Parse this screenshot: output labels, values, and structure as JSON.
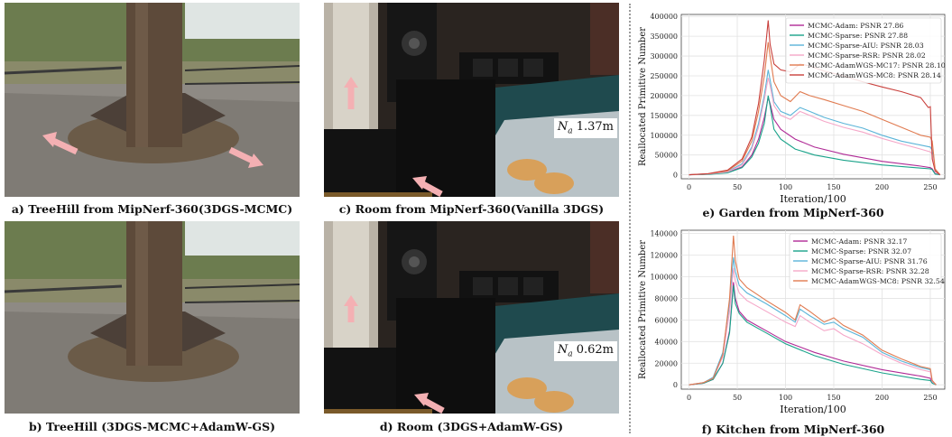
{
  "photos": {
    "a": {
      "caption": "a) TreeHill from MipNerf-360(3DGS-MCMC)"
    },
    "b": {
      "caption": "b) TreeHill (3DGS-MCMC+AdamW-GS)"
    },
    "c": {
      "caption": "c) Room from MipNerf-360(Vanilla 3DGS)",
      "na_symbol": "N",
      "na_sub": "a",
      "na_value": "1.37m"
    },
    "d": {
      "caption": "d) Room (3DGS+AdamW-GS)",
      "na_symbol": "N",
      "na_sub": "a",
      "na_value": "0.62m"
    }
  },
  "colors": {
    "arrow": "#f4b0b3",
    "adam": "#b02a96",
    "sparse": "#1aa38a",
    "aiu": "#5ab4d8",
    "rsr": "#f5a7c8",
    "mc17": "#e07a4f",
    "mc8": "#c9403c"
  },
  "chart_data": [
    {
      "type": "line",
      "caption": "e) Garden from MipNerf-360",
      "xlabel": "Iteration/100",
      "ylabel": "Reallocated Primitive Number",
      "xlim": [
        -8,
        265
      ],
      "ylim": [
        -10000,
        405000
      ],
      "xticks": [
        0,
        50,
        100,
        150,
        200,
        250
      ],
      "yticks": [
        0,
        50000,
        100000,
        150000,
        200000,
        250000,
        300000,
        350000,
        400000
      ],
      "legend_position": "top-right",
      "series": [
        {
          "name": "MCMC-Adam: PSNR 27.86",
          "color_key": "adam",
          "x": [
            0,
            20,
            40,
            55,
            65,
            72,
            78,
            82,
            84,
            88,
            95,
            110,
            130,
            160,
            200,
            240,
            250,
            252,
            255,
            260
          ],
          "y": [
            0,
            1500,
            6000,
            20000,
            50000,
            90000,
            145000,
            195000,
            180000,
            140000,
            115000,
            90000,
            70000,
            52000,
            34000,
            22000,
            18000,
            15000,
            3000,
            0
          ]
        },
        {
          "name": "MCMC-Sparse: PSNR 27.88",
          "color_key": "sparse",
          "x": [
            0,
            20,
            40,
            55,
            65,
            72,
            78,
            82,
            84,
            88,
            95,
            110,
            130,
            160,
            200,
            240,
            250,
            252,
            255,
            260
          ],
          "y": [
            0,
            1000,
            5000,
            18000,
            45000,
            80000,
            130000,
            200000,
            175000,
            115000,
            90000,
            65000,
            50000,
            37000,
            25000,
            17000,
            15000,
            13000,
            2000,
            0
          ]
        },
        {
          "name": "MCMC-Sparse-AIU: PSNR 28.03",
          "color_key": "aiu",
          "x": [
            0,
            20,
            40,
            55,
            65,
            72,
            78,
            82,
            84,
            88,
            95,
            105,
            115,
            125,
            140,
            160,
            180,
            200,
            220,
            240,
            250,
            252,
            255,
            260
          ],
          "y": [
            0,
            2000,
            8000,
            28000,
            70000,
            130000,
            200000,
            265000,
            240000,
            185000,
            160000,
            150000,
            170000,
            160000,
            145000,
            130000,
            118000,
            100000,
            85000,
            75000,
            70000,
            62000,
            10000,
            0
          ]
        },
        {
          "name": "MCMC-Sparse-RSR: PSNR 28.02",
          "color_key": "rsr",
          "x": [
            0,
            20,
            40,
            55,
            65,
            72,
            78,
            82,
            84,
            88,
            95,
            105,
            115,
            125,
            140,
            160,
            180,
            200,
            220,
            240,
            250,
            252,
            255,
            260
          ],
          "y": [
            0,
            2000,
            7000,
            25000,
            65000,
            120000,
            190000,
            245000,
            225000,
            175000,
            150000,
            140000,
            160000,
            150000,
            135000,
            120000,
            108000,
            92000,
            78000,
            65000,
            58000,
            52000,
            8000,
            0
          ]
        },
        {
          "name": "MCMC-AdamWGS-MC17: PSNR 28.10",
          "color_key": "mc17",
          "x": [
            0,
            20,
            40,
            55,
            65,
            72,
            78,
            82,
            84,
            88,
            95,
            105,
            115,
            125,
            140,
            160,
            180,
            200,
            220,
            240,
            250,
            252,
            255,
            260
          ],
          "y": [
            0,
            2500,
            10000,
            35000,
            85000,
            160000,
            250000,
            335000,
            300000,
            235000,
            200000,
            185000,
            210000,
            200000,
            190000,
            175000,
            160000,
            140000,
            120000,
            100000,
            95000,
            85000,
            15000,
            0
          ]
        },
        {
          "name": "MCMC-AdamWGS-MC8: PSNR 28.14",
          "color_key": "mc8",
          "x": [
            0,
            20,
            40,
            55,
            65,
            72,
            78,
            82,
            84,
            88,
            95,
            105,
            115,
            125,
            140,
            160,
            180,
            200,
            220,
            240,
            248,
            250,
            252,
            255,
            260
          ],
          "y": [
            0,
            3000,
            12000,
            40000,
            95000,
            180000,
            290000,
            390000,
            330000,
            280000,
            265000,
            260000,
            280000,
            275000,
            262000,
            250000,
            235000,
            222000,
            210000,
            195000,
            170000,
            172000,
            40000,
            10000,
            0
          ]
        }
      ]
    },
    {
      "type": "line",
      "caption": "f) Kitchen from MipNerf-360",
      "xlabel": "Iteration/100",
      "ylabel": "Reallocated Primitive Number",
      "xlim": [
        -8,
        265
      ],
      "ylim": [
        -4000,
        143000
      ],
      "xticks": [
        0,
        50,
        100,
        150,
        200,
        250
      ],
      "yticks": [
        0,
        20000,
        40000,
        60000,
        80000,
        100000,
        120000,
        140000
      ],
      "legend_position": "top-right",
      "series": [
        {
          "name": "MCMC-Adam: PSNR 32.17",
          "color_key": "adam",
          "x": [
            0,
            15,
            25,
            35,
            42,
            46,
            48,
            52,
            60,
            80,
            100,
            130,
            160,
            200,
            240,
            250,
            252,
            256
          ],
          "y": [
            0,
            1500,
            5000,
            20000,
            50000,
            95000,
            80000,
            68000,
            60000,
            50000,
            40000,
            30000,
            22000,
            14000,
            8000,
            6000,
            2000,
            0
          ]
        },
        {
          "name": "MCMC-Sparse: PSNR 32.07",
          "color_key": "sparse",
          "x": [
            0,
            15,
            25,
            35,
            42,
            46,
            48,
            52,
            60,
            80,
            100,
            130,
            160,
            200,
            240,
            250,
            252,
            256
          ],
          "y": [
            0,
            1500,
            5000,
            20000,
            48000,
            92000,
            75000,
            66000,
            58000,
            48000,
            38000,
            27000,
            19000,
            11000,
            5000,
            4000,
            1500,
            0
          ]
        },
        {
          "name": "MCMC-Sparse-AIU: PSNR 31.76",
          "color_key": "aiu",
          "x": [
            0,
            15,
            25,
            35,
            42,
            46,
            48,
            52,
            60,
            80,
            100,
            110,
            115,
            125,
            140,
            150,
            160,
            180,
            200,
            220,
            240,
            250,
            252,
            256
          ],
          "y": [
            0,
            2000,
            7000,
            30000,
            75000,
            118000,
            105000,
            92000,
            85000,
            75000,
            64000,
            58000,
            70000,
            64000,
            56000,
            58000,
            52000,
            44000,
            30000,
            22000,
            16000,
            14000,
            3000,
            0
          ]
        },
        {
          "name": "MCMC-Sparse-RSR: PSNR 32.28",
          "color_key": "rsr",
          "x": [
            0,
            15,
            25,
            35,
            42,
            46,
            48,
            52,
            60,
            80,
            100,
            110,
            115,
            125,
            140,
            150,
            160,
            180,
            200,
            220,
            240,
            250,
            252,
            256
          ],
          "y": [
            0,
            2000,
            6000,
            26000,
            68000,
            108000,
            96000,
            85000,
            78000,
            68000,
            58000,
            54000,
            64000,
            58000,
            50000,
            52000,
            46000,
            38000,
            28000,
            20000,
            14000,
            12000,
            3000,
            0
          ]
        },
        {
          "name": "MCMC-AdamWGS-MC8: PSNR 32.54",
          "color_key": "mc17",
          "x": [
            0,
            15,
            25,
            35,
            42,
            46,
            48,
            52,
            60,
            80,
            100,
            110,
            115,
            125,
            140,
            150,
            160,
            180,
            200,
            220,
            240,
            250,
            252,
            256
          ],
          "y": [
            0,
            2000,
            6000,
            28000,
            80000,
            138000,
            115000,
            98000,
            90000,
            78000,
            67000,
            60000,
            74000,
            68000,
            58000,
            62000,
            55000,
            46000,
            32000,
            24000,
            17000,
            15000,
            4000,
            0
          ]
        }
      ]
    }
  ]
}
